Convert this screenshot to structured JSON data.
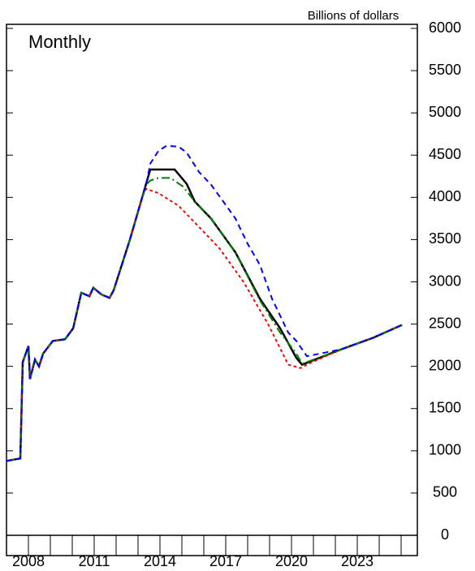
{
  "chart_data": {
    "type": "line",
    "ylabel": "Billions of dollars",
    "annotation": "Monthly",
    "xlim": [
      2007,
      2025.74
    ],
    "xticks": [
      2008,
      2011,
      2014,
      2017,
      2020,
      2023
    ],
    "xminorticks": [
      2009,
      2010,
      2012,
      2013,
      2015,
      2016,
      2018,
      2019,
      2021,
      2022,
      2024,
      2025
    ],
    "ylim": [
      0,
      6000
    ],
    "yticks": [
      0,
      500,
      1000,
      1500,
      2000,
      2500,
      3000,
      3500,
      4000,
      4500,
      5000,
      5500,
      6000
    ],
    "series": [
      {
        "color": "#000000",
        "dash": "solid",
        "x": [
          2007.0,
          2007.63,
          2007.74,
          2008.0,
          2008.07,
          2008.3,
          2008.48,
          2008.67,
          2009.11,
          2009.67,
          2010.04,
          2010.41,
          2010.78,
          2010.96,
          2011.33,
          2011.7,
          2011.89,
          2012.63,
          2013.19,
          2013.56,
          2014.67,
          2015.22,
          2015.59,
          2016.33,
          2017.44,
          2018.56,
          2019.48,
          2020.22,
          2020.48,
          2022.26,
          2023.74,
          2025.04
        ],
        "values": [
          880,
          910,
          2050,
          2240,
          1850,
          2080,
          2000,
          2150,
          2300,
          2320,
          2450,
          2870,
          2830,
          2930,
          2850,
          2810,
          2900,
          3500,
          4000,
          4330,
          4330,
          4160,
          3950,
          3750,
          3350,
          2800,
          2450,
          2100,
          2020,
          2200,
          2340,
          2490
        ]
      },
      {
        "color": "#ff0000",
        "dash": "dotted",
        "x": [
          2007.0,
          2007.63,
          2007.74,
          2008.0,
          2008.07,
          2008.3,
          2008.48,
          2008.67,
          2009.11,
          2009.67,
          2010.04,
          2010.41,
          2010.78,
          2010.96,
          2011.33,
          2011.7,
          2011.89,
          2012.63,
          2013.19,
          2013.37,
          2013.93,
          2014.85,
          2015.78,
          2016.7,
          2017.81,
          2018.93,
          2019.85,
          2020.41,
          2020.78,
          2022.26,
          2023.74,
          2025.04
        ],
        "values": [
          880,
          910,
          2050,
          2240,
          1850,
          2080,
          2000,
          2150,
          2300,
          2320,
          2450,
          2870,
          2830,
          2930,
          2850,
          2810,
          2900,
          3500,
          4000,
          4100,
          4050,
          3900,
          3650,
          3400,
          3000,
          2500,
          2020,
          1980,
          2030,
          2200,
          2340,
          2490
        ]
      },
      {
        "color": "#008000",
        "dash": "dashdot",
        "x": [
          2007.0,
          2007.63,
          2007.74,
          2008.0,
          2008.07,
          2008.3,
          2008.48,
          2008.67,
          2009.11,
          2009.67,
          2010.04,
          2010.41,
          2010.78,
          2010.96,
          2011.33,
          2011.7,
          2011.89,
          2012.63,
          2013.19,
          2013.37,
          2013.56,
          2013.93,
          2014.48,
          2015.04,
          2015.59,
          2016.33,
          2017.44,
          2018.56,
          2019.48,
          2020.22,
          2020.48,
          2022.26,
          2023.74,
          2025.04
        ],
        "values": [
          880,
          910,
          2050,
          2240,
          1850,
          2080,
          2000,
          2150,
          2300,
          2320,
          2450,
          2870,
          2830,
          2930,
          2850,
          2810,
          2900,
          3500,
          4000,
          4150,
          4200,
          4230,
          4230,
          4130,
          3950,
          3750,
          3350,
          2780,
          2400,
          2150,
          2030,
          2200,
          2340,
          2490
        ]
      },
      {
        "color": "#0000ff",
        "dash": "dashed",
        "x": [
          2007.0,
          2007.63,
          2007.74,
          2008.0,
          2008.07,
          2008.3,
          2008.48,
          2008.67,
          2009.11,
          2009.67,
          2010.04,
          2010.41,
          2010.78,
          2010.96,
          2011.33,
          2011.7,
          2011.89,
          2012.63,
          2013.19,
          2013.37,
          2013.56,
          2013.93,
          2014.3,
          2014.85,
          2015.22,
          2015.78,
          2016.33,
          2016.89,
          2017.44,
          2018.0,
          2018.56,
          2019.11,
          2019.48,
          2019.85,
          2020.22,
          2020.7,
          2022.26,
          2023.74,
          2025.04
        ],
        "values": [
          880,
          910,
          2050,
          2240,
          1850,
          2080,
          2000,
          2150,
          2300,
          2320,
          2450,
          2870,
          2830,
          2930,
          2850,
          2810,
          2900,
          3500,
          4000,
          4150,
          4400,
          4550,
          4610,
          4600,
          4530,
          4300,
          4150,
          3950,
          3750,
          3450,
          3200,
          2800,
          2600,
          2400,
          2300,
          2120,
          2200,
          2340,
          2490
        ]
      }
    ]
  }
}
